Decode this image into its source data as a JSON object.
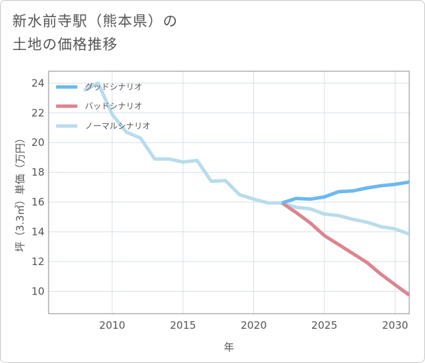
{
  "page": {
    "title_line1": "新水前寺駅（熊本県）の",
    "title_line2": "土地の価格推移"
  },
  "chart_data": {
    "type": "line",
    "title": "新水前寺駅（熊本県）の土地の価格推移",
    "xlabel": "年",
    "ylabel": "坪（3.3㎡）単価（万円）",
    "xlim": [
      2005.5,
      2031
    ],
    "ylim": [
      8.5,
      24.8
    ],
    "x_ticks": [
      2010,
      2015,
      2020,
      2025,
      2030
    ],
    "y_ticks": [
      10,
      12,
      14,
      16,
      18,
      20,
      22,
      24
    ],
    "grid": true,
    "legend_position": "top-left",
    "series": [
      {
        "name": "グッドシナリオ",
        "color": "#6cb8ef",
        "x": [
          2022,
          2023,
          2024,
          2025,
          2026,
          2027,
          2028,
          2029,
          2030,
          2031
        ],
        "y": [
          15.95,
          16.25,
          16.2,
          16.35,
          16.7,
          16.75,
          16.95,
          17.1,
          17.2,
          17.35
        ]
      },
      {
        "name": "バッドシナリオ",
        "color": "#dc8590",
        "x": [
          2022,
          2023,
          2024,
          2025,
          2026,
          2027,
          2028,
          2029,
          2030,
          2031
        ],
        "y": [
          15.95,
          15.3,
          14.6,
          13.75,
          13.15,
          12.55,
          11.95,
          11.15,
          10.45,
          9.75
        ]
      },
      {
        "name": "ノーマルシナリオ",
        "color": "#b9dcec",
        "x": [
          2008,
          2009,
          2010,
          2011,
          2012,
          2013,
          2014,
          2015,
          2016,
          2017,
          2018,
          2019,
          2020,
          2021,
          2022,
          2023,
          2024,
          2025,
          2026,
          2027,
          2028,
          2029,
          2030,
          2031
        ],
        "y": [
          23.5,
          24.0,
          21.9,
          20.7,
          20.3,
          18.9,
          18.9,
          18.7,
          18.8,
          17.4,
          17.45,
          16.5,
          16.2,
          15.95,
          15.95,
          15.65,
          15.55,
          15.2,
          15.1,
          14.85,
          14.65,
          14.35,
          14.2,
          13.85
        ]
      }
    ]
  }
}
